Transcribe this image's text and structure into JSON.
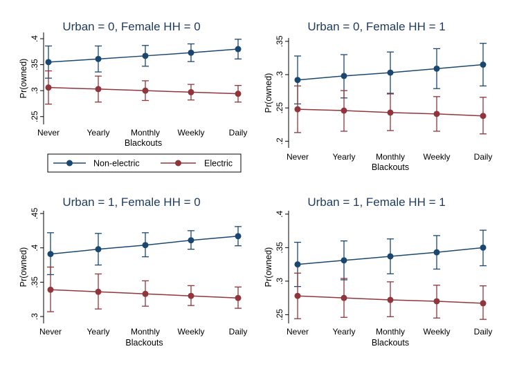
{
  "colors": {
    "non_electric": "#1a476f",
    "electric": "#90353b",
    "axis": "#000000",
    "title": "#1e3a5f",
    "background": "#ffffff"
  },
  "legend": {
    "placement": "center-left, between top and bottom rows",
    "items": [
      {
        "label": "Non-electric",
        "color": "#1a476f"
      },
      {
        "label": "Electric",
        "color": "#90353b"
      }
    ]
  },
  "chart_data": [
    {
      "type": "line",
      "title": "Urban = 0, Female HH = 0",
      "xlabel": "Blackouts",
      "ylabel": "Pr(owned)",
      "categories": [
        "Never",
        "Yearly",
        "Monthly",
        "Weekly",
        "Daily"
      ],
      "yticks": [
        ".25",
        ".3",
        ".35",
        ".4"
      ],
      "ytick_values": [
        0.25,
        0.3,
        0.35,
        0.4
      ],
      "ylim": [
        0.235,
        0.412
      ],
      "grid": false,
      "series": [
        {
          "name": "Non-electric",
          "values": [
            0.355,
            0.361,
            0.367,
            0.373,
            0.38
          ],
          "lower": [
            0.324,
            0.336,
            0.347,
            0.356,
            0.361
          ],
          "upper": [
            0.386,
            0.386,
            0.387,
            0.39,
            0.399
          ]
        },
        {
          "name": "Electric",
          "values": [
            0.306,
            0.303,
            0.3,
            0.297,
            0.294
          ],
          "lower": [
            0.274,
            0.278,
            0.281,
            0.282,
            0.278
          ],
          "upper": [
            0.338,
            0.328,
            0.319,
            0.312,
            0.31
          ]
        }
      ]
    },
    {
      "type": "line",
      "title": "Urban = 0, Female HH = 1",
      "xlabel": "Blackouts",
      "ylabel": "Pr(owned)",
      "categories": [
        "Never",
        "Yearly",
        "Monthly",
        "Weekly",
        "Daily"
      ],
      "yticks": [
        ".2",
        ".25",
        ".3",
        ".35"
      ],
      "ytick_values": [
        0.2,
        0.25,
        0.3,
        0.35
      ],
      "ylim": [
        0.19,
        0.355
      ],
      "grid": false,
      "series": [
        {
          "name": "Non-electric",
          "values": [
            0.292,
            0.298,
            0.303,
            0.309,
            0.315
          ],
          "lower": [
            0.256,
            0.265,
            0.272,
            0.279,
            0.283
          ],
          "upper": [
            0.328,
            0.33,
            0.334,
            0.339,
            0.347
          ]
        },
        {
          "name": "Electric",
          "values": [
            0.248,
            0.246,
            0.243,
            0.241,
            0.238
          ],
          "lower": [
            0.213,
            0.215,
            0.216,
            0.215,
            0.211
          ],
          "upper": [
            0.283,
            0.276,
            0.271,
            0.267,
            0.266
          ]
        }
      ]
    },
    {
      "type": "line",
      "title": "Urban = 1, Female HH = 0",
      "xlabel": "Blackouts",
      "ylabel": "Pr(owned)",
      "categories": [
        "Never",
        "Yearly",
        "Monthly",
        "Weekly",
        "Daily"
      ],
      "yticks": [
        ".3",
        ".35",
        ".4",
        ".45"
      ],
      "ytick_values": [
        0.3,
        0.35,
        0.4,
        0.45
      ],
      "ylim": [
        0.29,
        0.454
      ],
      "grid": false,
      "series": [
        {
          "name": "Non-electric",
          "values": [
            0.391,
            0.398,
            0.404,
            0.411,
            0.417
          ],
          "lower": [
            0.361,
            0.375,
            0.387,
            0.398,
            0.403
          ],
          "upper": [
            0.422,
            0.421,
            0.422,
            0.425,
            0.431
          ]
        },
        {
          "name": "Electric",
          "values": [
            0.339,
            0.336,
            0.333,
            0.33,
            0.327
          ],
          "lower": [
            0.307,
            0.311,
            0.315,
            0.316,
            0.312
          ],
          "upper": [
            0.372,
            0.362,
            0.352,
            0.345,
            0.343
          ]
        }
      ]
    },
    {
      "type": "line",
      "title": "Urban = 1, Female HH = 1",
      "xlabel": "Blackouts",
      "ylabel": "Pr(owned)",
      "categories": [
        "Never",
        "Yearly",
        "Monthly",
        "Weekly",
        "Daily"
      ],
      "yticks": [
        ".25",
        ".3",
        ".35",
        ".4"
      ],
      "ytick_values": [
        0.25,
        0.3,
        0.35,
        0.4
      ],
      "ylim": [
        0.237,
        0.405
      ],
      "grid": false,
      "series": [
        {
          "name": "Non-electric",
          "values": [
            0.325,
            0.331,
            0.337,
            0.343,
            0.35
          ],
          "lower": [
            0.292,
            0.302,
            0.311,
            0.318,
            0.323
          ],
          "upper": [
            0.358,
            0.36,
            0.363,
            0.368,
            0.376
          ]
        },
        {
          "name": "Electric",
          "values": [
            0.278,
            0.275,
            0.272,
            0.27,
            0.267
          ],
          "lower": [
            0.244,
            0.246,
            0.247,
            0.245,
            0.243
          ],
          "upper": [
            0.312,
            0.304,
            0.299,
            0.294,
            0.293
          ]
        }
      ]
    }
  ]
}
